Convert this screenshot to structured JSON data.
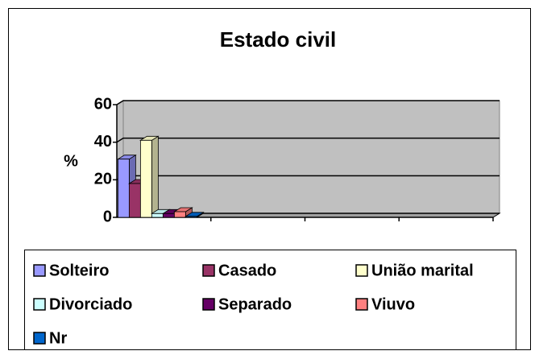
{
  "chart_data": {
    "type": "bar3d",
    "title": "Estado civil",
    "y_label": "%",
    "categories": [
      null,
      null,
      null,
      null
    ],
    "series": [
      {
        "name": "Solteiro",
        "color": "#9999ff",
        "values": [
          31,
          null,
          null,
          null
        ]
      },
      {
        "name": "Casado",
        "color": "#993366",
        "values": [
          18,
          null,
          null,
          null
        ]
      },
      {
        "name": "União marital",
        "color": "#ffffcc",
        "values": [
          41,
          null,
          null,
          null
        ]
      },
      {
        "name": "Divorciado",
        "color": "#ccffff",
        "values": [
          2,
          null,
          null,
          null
        ]
      },
      {
        "name": "Separado",
        "color": "#660066",
        "values": [
          2,
          null,
          null,
          null
        ]
      },
      {
        "name": "Viuvo",
        "color": "#ff8080",
        "values": [
          3,
          null,
          null,
          null
        ]
      },
      {
        "name": "Nr",
        "color": "#0066cc",
        "values": [
          0.5,
          null,
          null,
          null
        ]
      }
    ],
    "ylim": [
      0,
      60
    ],
    "yticks": [
      0,
      20,
      40,
      60
    ],
    "grid": true,
    "wall_color": "#c0c0c0"
  }
}
